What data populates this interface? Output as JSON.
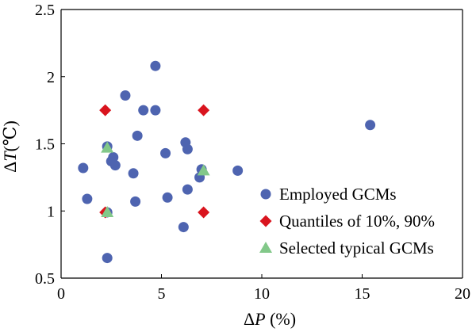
{
  "chart_data": {
    "type": "scatter",
    "xlim": [
      0,
      20
    ],
    "ylim": [
      0.5,
      2.5
    ],
    "x_ticks": [
      "0",
      "5",
      "10",
      "15",
      "20"
    ],
    "y_ticks": [
      "0.5",
      "1",
      "1.5",
      "2",
      "2.5"
    ],
    "xlabel": {
      "prefix": "Δ",
      "var": "P",
      "suffix": " (%)"
    },
    "ylabel": {
      "prefix": "Δ",
      "var": "T",
      "suffix": "(℃)"
    },
    "grid": false,
    "legend_position": "bottom-right",
    "series": [
      {
        "name": "Employed GCMs",
        "marker": "circle",
        "color": "#4E64B0",
        "points": [
          [
            4.7,
            2.08
          ],
          [
            3.2,
            1.86
          ],
          [
            4.1,
            1.75
          ],
          [
            4.7,
            1.75
          ],
          [
            15.4,
            1.64
          ],
          [
            3.8,
            1.56
          ],
          [
            6.2,
            1.51
          ],
          [
            2.3,
            1.48
          ],
          [
            6.3,
            1.46
          ],
          [
            5.2,
            1.43
          ],
          [
            2.6,
            1.4
          ],
          [
            2.5,
            1.37
          ],
          [
            2.7,
            1.34
          ],
          [
            1.1,
            1.32
          ],
          [
            7.0,
            1.31
          ],
          [
            8.8,
            1.3
          ],
          [
            3.6,
            1.28
          ],
          [
            6.9,
            1.25
          ],
          [
            6.3,
            1.16
          ],
          [
            5.3,
            1.1
          ],
          [
            1.3,
            1.09
          ],
          [
            3.7,
            1.07
          ],
          [
            2.3,
            0.99
          ],
          [
            6.1,
            0.88
          ],
          [
            2.3,
            0.65
          ]
        ]
      },
      {
        "name": "Quantiles of 10%, 90%",
        "marker": "diamond",
        "color": "#D9141E",
        "points": [
          [
            2.2,
            1.75
          ],
          [
            7.1,
            1.75
          ],
          [
            2.2,
            0.99
          ],
          [
            7.1,
            0.99
          ]
        ]
      },
      {
        "name": "Selected typical GCMs",
        "marker": "triangle",
        "color": "#82C889",
        "points": [
          [
            2.3,
            1.47
          ],
          [
            7.1,
            1.3
          ],
          [
            2.3,
            0.99
          ]
        ]
      }
    ]
  }
}
